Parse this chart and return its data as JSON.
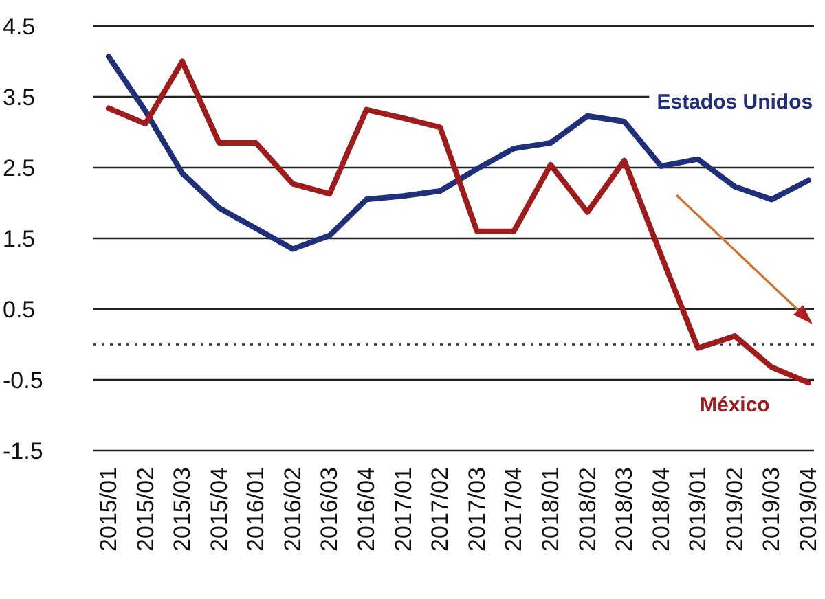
{
  "chart_data": {
    "type": "line",
    "categories": [
      "2015/01",
      "2015/02",
      "2015/03",
      "2015/04",
      "2016/01",
      "2016/02",
      "2016/03",
      "2016/04",
      "2017/01",
      "2017/02",
      "2017/03",
      "2017/04",
      "2018/01",
      "2018/02",
      "2018/03",
      "2018/04",
      "2019/01",
      "2019/02",
      "2019/03",
      "2019/04"
    ],
    "series": [
      {
        "name": "Estados Unidos",
        "color": "#1f2f7a",
        "values": [
          4.07,
          3.3,
          2.42,
          1.93,
          1.64,
          1.35,
          1.54,
          2.05,
          2.1,
          2.17,
          2.48,
          2.77,
          2.85,
          3.23,
          3.15,
          2.52,
          2.62,
          2.23,
          2.05,
          2.32
        ]
      },
      {
        "name": "México",
        "color": "#a01c1c",
        "values": [
          3.34,
          3.12,
          4.0,
          2.85,
          2.85,
          2.27,
          2.13,
          3.32,
          3.2,
          3.07,
          1.6,
          1.6,
          2.54,
          1.87,
          2.6,
          1.26,
          -0.05,
          0.12,
          -0.32,
          -0.54
        ]
      }
    ],
    "ylim": [
      -1.5,
      4.5
    ],
    "yticks": [
      -1.5,
      -0.5,
      0.5,
      1.5,
      2.5,
      3.5,
      4.5
    ],
    "grid": "y",
    "marker": "none",
    "line_style": "solid",
    "ref_lines": [
      {
        "axis": "y",
        "value": 0,
        "line_style": "dotted",
        "color": "#333333"
      }
    ]
  }
}
